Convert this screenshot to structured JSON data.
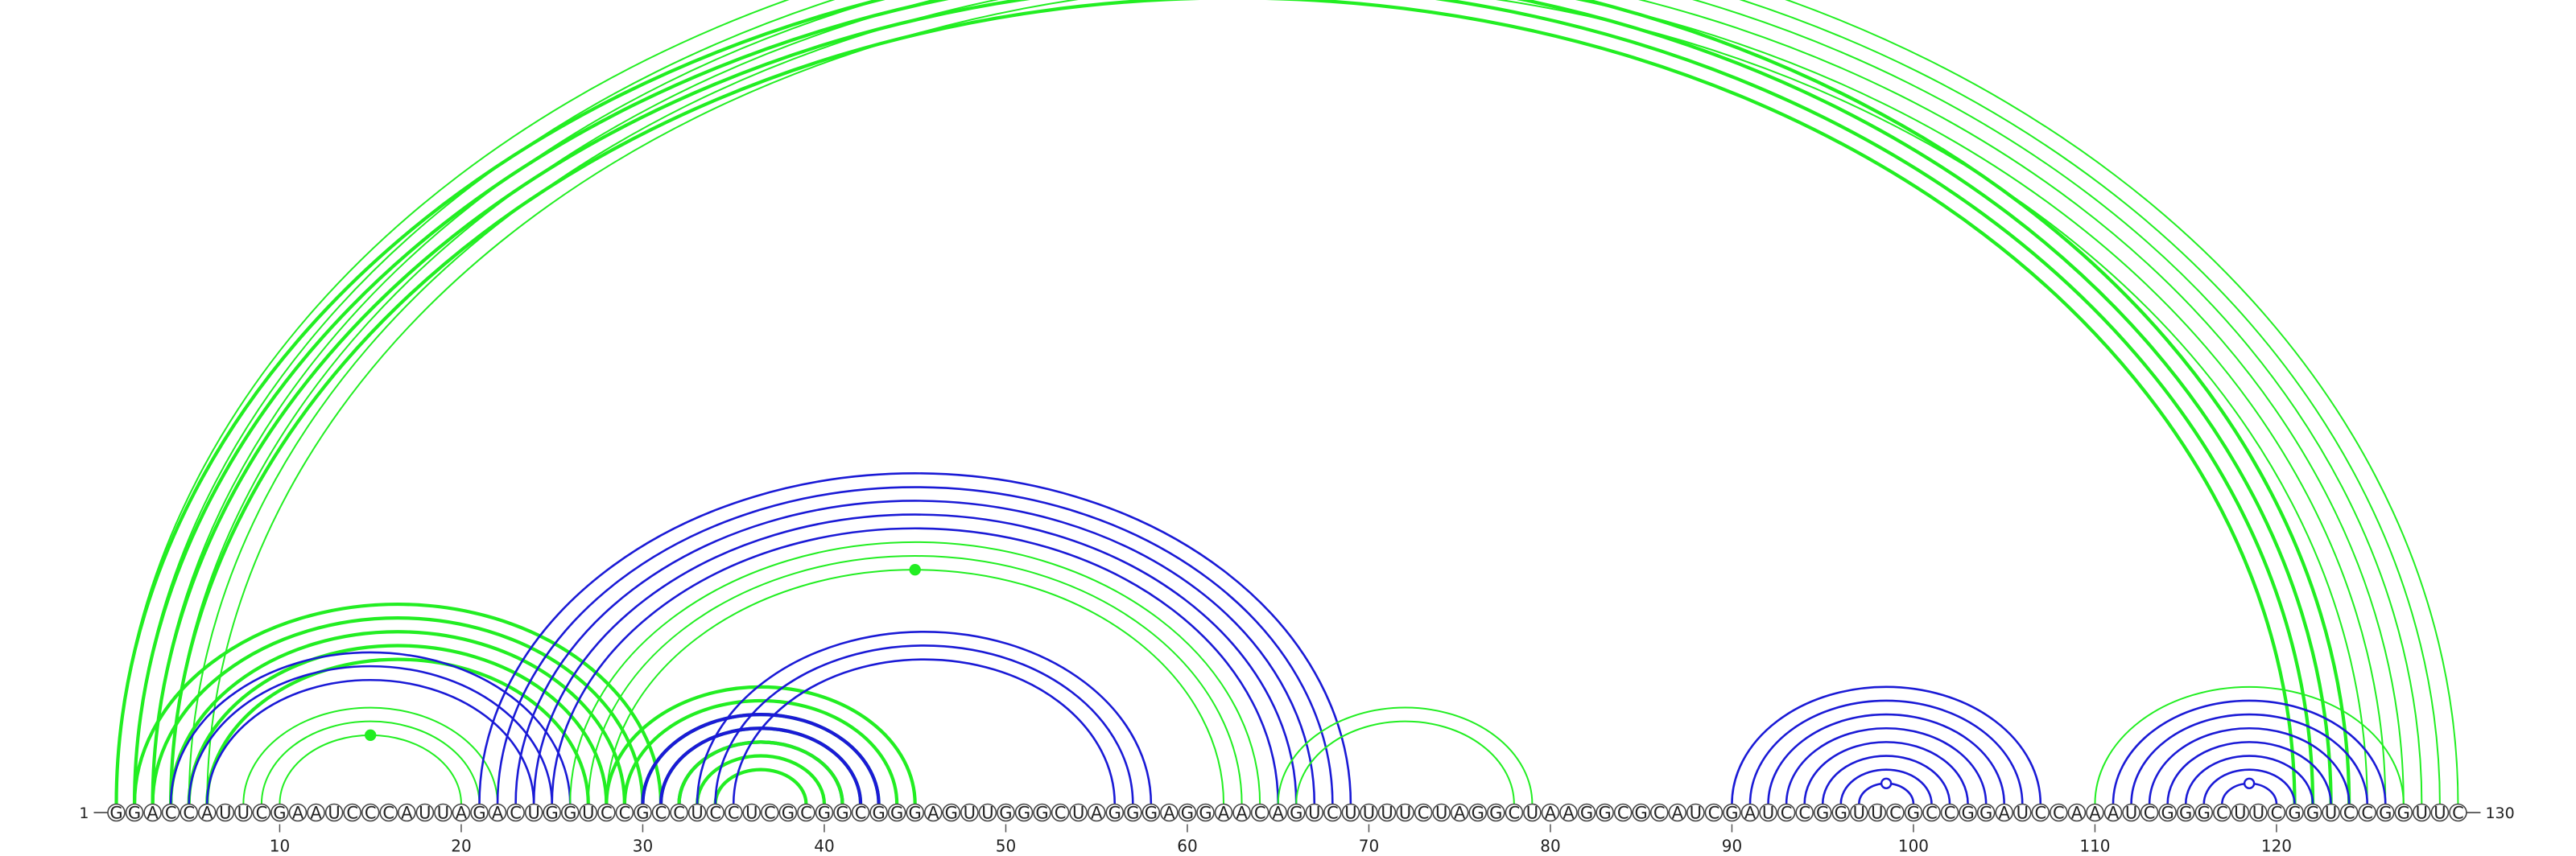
{
  "sequence": "GGACCAUUCGAAUCCCAUUAGACUGGUCCGCCUCCUCGCGGCGGGAGUUGGGCUAGGGAGGAACAGUCUUUUCUAGGCUAAGGCGCAUCGAUCCGGUUCGCCGGAUCCAAAUCGGGCUUCGGUCCGGUUC",
  "start_label": "1",
  "end_label": "130",
  "ticks": [
    10,
    20,
    30,
    40,
    50,
    60,
    70,
    80,
    90,
    100,
    110,
    120
  ],
  "colors": {
    "green": "#22ee22",
    "blue": "#1a1ad6"
  },
  "chart_data": {
    "type": "arc-diagram",
    "sequence_length": 130,
    "helices": [
      {
        "color": "green",
        "pairs": [
          [
            1,
            124
          ],
          [
            2,
            123
          ],
          [
            3,
            122
          ],
          [
            4,
            121
          ]
        ],
        "weight": "bold"
      },
      {
        "color": "green",
        "pairs": [
          [
            1,
            130
          ],
          [
            2,
            129
          ],
          [
            3,
            128
          ],
          [
            4,
            127
          ],
          [
            5,
            126
          ],
          [
            6,
            125
          ]
        ],
        "weight": "thin",
        "marker": {
          "type": "open",
          "at": 66
        }
      },
      {
        "color": "green",
        "pairs": [
          [
            2,
            31
          ],
          [
            3,
            30
          ],
          [
            4,
            29
          ],
          [
            5,
            28
          ],
          [
            6,
            27
          ]
        ],
        "weight": "bold"
      },
      {
        "color": "blue",
        "pairs": [
          [
            4,
            26
          ],
          [
            5,
            25
          ],
          [
            6,
            24
          ]
        ],
        "weight": "normal"
      },
      {
        "color": "green",
        "pairs": [
          [
            8,
            22
          ],
          [
            9,
            21
          ],
          [
            10,
            20
          ]
        ],
        "weight": "thin",
        "marker": {
          "type": "filled",
          "at": 15
        }
      },
      {
        "color": "blue",
        "pairs": [
          [
            21,
            69
          ],
          [
            22,
            68
          ],
          [
            23,
            67
          ],
          [
            24,
            66
          ],
          [
            25,
            65
          ]
        ],
        "weight": "normal"
      },
      {
        "color": "green",
        "pairs": [
          [
            26,
            64
          ],
          [
            27,
            63
          ],
          [
            28,
            62
          ]
        ],
        "weight": "thin",
        "marker": {
          "type": "filled",
          "at": 45
        }
      },
      {
        "color": "green",
        "pairs": [
          [
            28,
            45
          ],
          [
            29,
            44
          ],
          [
            30,
            43
          ],
          [
            31,
            42
          ]
        ],
        "weight": "bold"
      },
      {
        "color": "blue",
        "pairs": [
          [
            30,
            43
          ],
          [
            31,
            42
          ],
          [
            32,
            41
          ]
        ],
        "weight": "bold"
      },
      {
        "color": "green",
        "pairs": [
          [
            32,
            41
          ],
          [
            33,
            40
          ],
          [
            34,
            39
          ]
        ],
        "weight": "bold"
      },
      {
        "color": "blue",
        "pairs": [
          [
            33,
            58
          ],
          [
            34,
            57
          ],
          [
            35,
            56
          ]
        ],
        "weight": "normal"
      },
      {
        "color": "green",
        "pairs": [
          [
            65,
            79
          ],
          [
            66,
            78
          ]
        ],
        "weight": "thin"
      },
      {
        "color": "blue",
        "pairs": [
          [
            90,
            107
          ],
          [
            91,
            106
          ],
          [
            92,
            105
          ],
          [
            93,
            104
          ],
          [
            94,
            103
          ],
          [
            95,
            102
          ],
          [
            96,
            101
          ],
          [
            97,
            100
          ]
        ],
        "weight": "normal",
        "marker": {
          "type": "open",
          "at": 98.5
        }
      },
      {
        "color": "green",
        "pairs": [
          [
            110,
            127
          ]
        ],
        "weight": "thin"
      },
      {
        "color": "blue",
        "pairs": [
          [
            111,
            126
          ],
          [
            112,
            125
          ],
          [
            113,
            124
          ],
          [
            114,
            123
          ],
          [
            115,
            122
          ],
          [
            116,
            121
          ],
          [
            117,
            120
          ]
        ],
        "weight": "normal",
        "marker": {
          "type": "open",
          "at": 118.5
        }
      }
    ]
  }
}
